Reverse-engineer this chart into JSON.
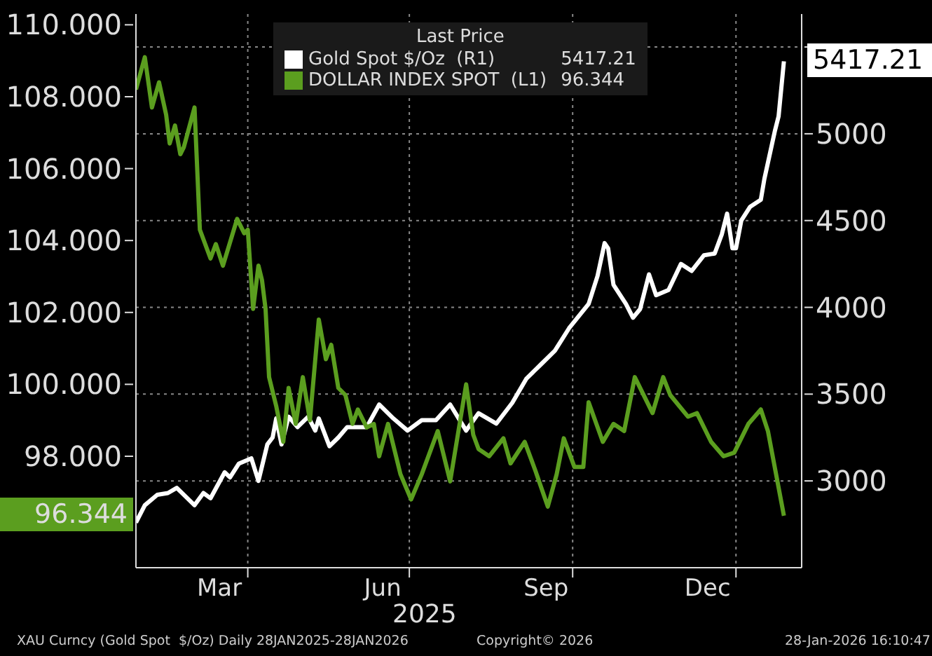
{
  "chart_data": {
    "type": "line",
    "legend_title": "Last Price",
    "legend": "top",
    "grid": true,
    "xlabel": "2025",
    "xlim": [
      "2025-01-28",
      "2026-02-07"
    ],
    "xticks": [
      {
        "value": "2025-03-16",
        "label": "Mar"
      },
      {
        "value": "2025-04-01",
        "label": null
      },
      {
        "value": "2025-06-16",
        "label": "Jun"
      },
      {
        "value": "2025-07-01",
        "label": null
      },
      {
        "value": "2025-09-16",
        "label": "Sep"
      },
      {
        "value": "2025-10-01",
        "label": null
      },
      {
        "value": "2025-12-16",
        "label": "Dec"
      },
      {
        "value": "2026-01-01",
        "label": null
      }
    ],
    "ylim": [
      94.9,
      110.3
    ],
    "yticks": [
      {
        "value": 96,
        "label": null
      },
      {
        "value": 98,
        "label": "98.000"
      },
      {
        "value": 100,
        "label": "100.000"
      },
      {
        "value": 102,
        "label": "102.000"
      },
      {
        "value": 104,
        "label": "104.000"
      },
      {
        "value": 106,
        "label": "106.000"
      },
      {
        "value": 108,
        "label": "108.000"
      },
      {
        "value": 110,
        "label": "110.000"
      }
    ],
    "y2lim": [
      2500,
      5690
    ],
    "y2ticks": [
      3000,
      3500,
      4000,
      4500,
      5000,
      {
        "value": 5500,
        "label": null
      }
    ],
    "series": [
      {
        "name": "Gold Spot $/Oz  (R1)",
        "color": "#ffffff",
        "axis": "y2",
        "x": [
          "2025-01-28",
          "2025-02-02",
          "2025-02-09",
          "2025-02-15",
          "2025-02-20",
          "2025-03-02",
          "2025-03-07",
          "2025-03-11",
          "2025-03-19",
          "2025-03-22",
          "2025-03-27",
          "2025-04-03",
          "2025-04-07",
          "2025-04-12",
          "2025-04-15",
          "2025-04-17",
          "2025-04-20",
          "2025-04-24",
          "2025-04-29",
          "2025-05-05",
          "2025-05-09",
          "2025-05-11",
          "2025-05-17",
          "2025-05-22",
          "2025-05-27",
          "2025-06-07",
          "2025-06-14",
          "2025-06-22",
          "2025-06-30",
          "2025-07-08",
          "2025-07-16",
          "2025-07-24",
          "2025-08-02",
          "2025-08-09",
          "2025-08-19",
          "2025-08-28",
          "2025-09-05",
          "2025-09-13",
          "2025-09-21",
          "2025-09-29",
          "2025-10-10",
          "2025-10-15",
          "2025-10-19",
          "2025-10-21",
          "2025-10-24",
          "2025-10-31",
          "2025-11-04",
          "2025-11-08",
          "2025-11-13",
          "2025-11-17",
          "2025-11-24",
          "2025-12-01",
          "2025-12-07",
          "2025-12-14",
          "2025-12-20",
          "2025-12-24",
          "2025-12-27",
          "2025-12-30",
          "2026-01-01",
          "2026-01-04",
          "2026-01-09",
          "2026-01-15",
          "2026-01-17",
          "2026-01-23",
          "2026-01-25",
          "2026-01-28"
        ],
        "values": [
          2760,
          2860,
          2920,
          2930,
          2960,
          2860,
          2930,
          2900,
          3050,
          3020,
          3100,
          3130,
          3000,
          3210,
          3250,
          3360,
          3210,
          3370,
          3310,
          3370,
          3290,
          3360,
          3200,
          3250,
          3310,
          3310,
          3440,
          3360,
          3290,
          3350,
          3350,
          3440,
          3290,
          3390,
          3330,
          3450,
          3590,
          3670,
          3750,
          3880,
          4020,
          4180,
          4370,
          4340,
          4130,
          4020,
          3940,
          3990,
          4190,
          4070,
          4100,
          4250,
          4210,
          4300,
          4310,
          4420,
          4540,
          4340,
          4340,
          4500,
          4580,
          4620,
          4740,
          5020,
          5100,
          5417.21
        ]
      },
      {
        "name": "DOLLAR INDEX SPOT  (L1)",
        "color": "#5b9e1f",
        "x": [
          "2025-01-28",
          "2025-02-02",
          "2025-02-06",
          "2025-02-10",
          "2025-02-14",
          "2025-02-16",
          "2025-02-19",
          "2025-02-22",
          "2025-02-24",
          "2025-03-02",
          "2025-03-05",
          "2025-03-11",
          "2025-03-14",
          "2025-03-18",
          "2025-03-26",
          "2025-03-30",
          "2025-04-01",
          "2025-04-04",
          "2025-04-07",
          "2025-04-09",
          "2025-04-11",
          "2025-04-13",
          "2025-04-17",
          "2025-04-21",
          "2025-04-24",
          "2025-04-28",
          "2025-05-02",
          "2025-05-06",
          "2025-05-11",
          "2025-05-15",
          "2025-05-18",
          "2025-05-22",
          "2025-05-26",
          "2025-05-30",
          "2025-06-02",
          "2025-06-07",
          "2025-06-11",
          "2025-06-14",
          "2025-06-19",
          "2025-06-26",
          "2025-07-02",
          "2025-07-08",
          "2025-07-17",
          "2025-07-24",
          "2025-08-02",
          "2025-08-06",
          "2025-08-09",
          "2025-08-15",
          "2025-08-23",
          "2025-08-27",
          "2025-09-04",
          "2025-09-10",
          "2025-09-17",
          "2025-09-22",
          "2025-09-26",
          "2025-10-02",
          "2025-10-07",
          "2025-10-10",
          "2025-10-18",
          "2025-10-24",
          "2025-10-30",
          "2025-11-05",
          "2025-11-15",
          "2025-11-21",
          "2025-11-25",
          "2025-12-05",
          "2025-12-10",
          "2025-12-18",
          "2025-12-25",
          "2025-12-31",
          "2026-01-08",
          "2026-01-15",
          "2026-01-19",
          "2026-01-28"
        ],
        "values": [
          108.2,
          109.1,
          107.7,
          108.4,
          107.5,
          106.7,
          107.2,
          106.4,
          106.6,
          107.7,
          104.3,
          103.5,
          103.9,
          103.3,
          104.6,
          104.2,
          104.3,
          102.1,
          103.3,
          102.9,
          102.1,
          100.2,
          99.4,
          98.4,
          99.9,
          98.9,
          100.2,
          99.0,
          101.8,
          100.7,
          101.1,
          99.9,
          99.7,
          98.9,
          99.3,
          98.8,
          98.9,
          98.0,
          98.9,
          97.5,
          96.8,
          97.5,
          98.7,
          97.3,
          100.0,
          98.6,
          98.2,
          98.0,
          98.5,
          97.8,
          98.4,
          97.6,
          96.6,
          97.5,
          98.5,
          97.7,
          97.7,
          99.5,
          98.4,
          98.9,
          98.7,
          100.2,
          99.2,
          100.2,
          99.7,
          99.1,
          99.2,
          98.4,
          98.0,
          98.1,
          98.9,
          99.3,
          98.7,
          96.344
        ]
      }
    ],
    "annotations": [
      "5417.21",
      "96.344",
      "XAU Curncy (Gold Spot  $/Oz) Daily 28JAN2025-28JAN2026",
      "Copyright© 2026",
      "28-Jan-2026 16:10:47"
    ]
  }
}
